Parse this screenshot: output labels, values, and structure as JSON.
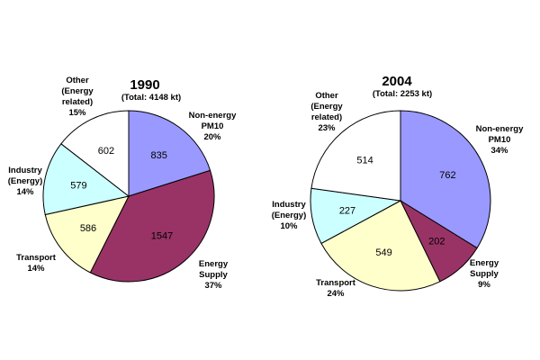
{
  "chart_data": [
    {
      "type": "pie",
      "title": "1990",
      "subtitle": "(Total: 4148 kt)",
      "start_angle_deg": 0,
      "slices": [
        {
          "name": "Non-energy PM10",
          "lines": [
            "Non-energy",
            "PM10",
            "20%"
          ],
          "value": 835,
          "percent": "20%",
          "color": "#9999ff"
        },
        {
          "name": "Energy Supply",
          "lines": [
            "Energy",
            "Supply",
            "37%"
          ],
          "value": 1547,
          "percent": "37%",
          "color": "#993366"
        },
        {
          "name": "Transport",
          "lines": [
            "Transport",
            "14%"
          ],
          "value": 586,
          "percent": "14%",
          "color": "#ffffcc"
        },
        {
          "name": "Industry (Energy)",
          "lines": [
            "Industry",
            "(Energy)",
            "14%"
          ],
          "value": 579,
          "percent": "14%",
          "color": "#ccffff"
        },
        {
          "name": "Other (Energy related)",
          "lines": [
            "Other",
            "(Energy",
            "related)",
            "15%"
          ],
          "value": 602,
          "percent": "15%",
          "color": "#ffffff"
        }
      ]
    },
    {
      "type": "pie",
      "title": "2004",
      "subtitle": "(Total: 2253 kt)",
      "start_angle_deg": 0,
      "slices": [
        {
          "name": "Non-energy PM10",
          "lines": [
            "Non-energy",
            "PM10",
            "34%"
          ],
          "value": 762,
          "percent": "34%",
          "color": "#9999ff"
        },
        {
          "name": "Energy Supply",
          "lines": [
            "Energy",
            "Supply",
            "9%"
          ],
          "value": 202,
          "percent": "9%",
          "color": "#993366"
        },
        {
          "name": "Transport",
          "lines": [
            "Transport",
            "24%"
          ],
          "value": 549,
          "percent": "24%",
          "color": "#ffffcc"
        },
        {
          "name": "Industry (Energy)",
          "lines": [
            "Industry",
            "(Energy)",
            "10%"
          ],
          "value": 227,
          "percent": "10%",
          "color": "#ccffff"
        },
        {
          "name": "Other (Energy related)",
          "lines": [
            "Other",
            "(Energy",
            "related)",
            "23%"
          ],
          "value": 514,
          "percent": "23%",
          "color": "#ffffff"
        }
      ]
    }
  ]
}
